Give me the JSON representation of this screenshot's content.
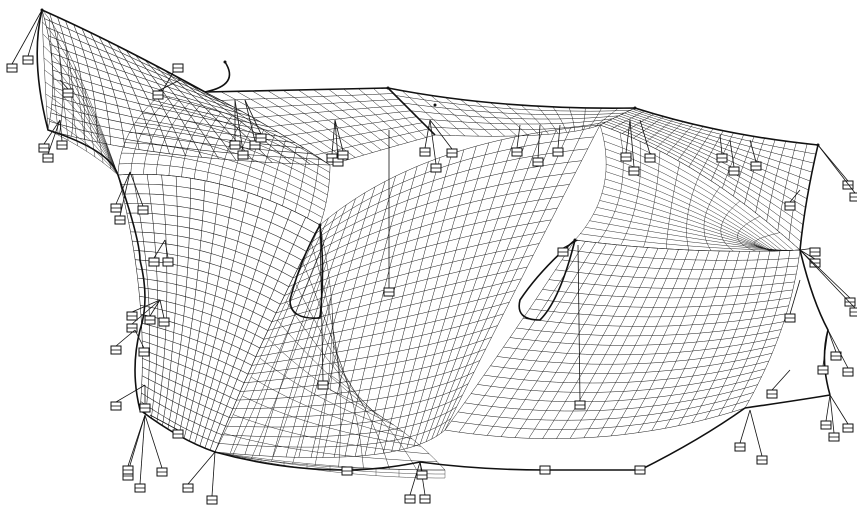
{
  "figure": {
    "subject": "tensile-membrane-structure",
    "view": "perspective-wireframe",
    "line_color": "#111111",
    "background_color": "#ffffff",
    "mesh_panels": 12,
    "masts": 8,
    "anchor_blocks": 72
  }
}
